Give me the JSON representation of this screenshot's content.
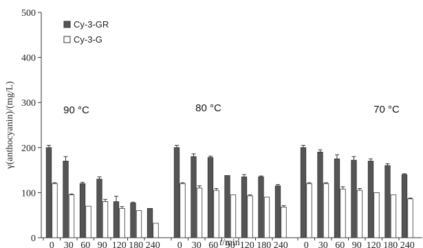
{
  "chart_data": {
    "type": "bar",
    "xlabel_italic": "t",
    "xlabel_rest": "/min",
    "ylabel": "γ(anthocyanin)/(mg/L)",
    "ylim": [
      0,
      500
    ],
    "yticks": [
      0,
      100,
      200,
      300,
      400,
      500
    ],
    "legend_placement": "top-left",
    "groups": [
      {
        "label": "90 °C",
        "categories": [
          "0",
          "30",
          "60",
          "90",
          "120",
          "180",
          "240"
        ],
        "series": [
          {
            "name": "Cy-3-GR",
            "values": [
              200,
              170,
              120,
              130,
              80,
              77,
              65
            ],
            "errors": [
              5,
              10,
              3,
              5,
              12,
              2,
              0
            ]
          },
          {
            "name": "Cy-3-G",
            "values": [
              120,
              95,
              70,
              80,
              65,
              60,
              32
            ],
            "errors": [
              2,
              2,
              0,
              5,
              4,
              0,
              0
            ]
          }
        ]
      },
      {
        "label": "80 °C",
        "categories": [
          "0",
          "30",
          "60",
          "90",
          "120",
          "180",
          "240"
        ],
        "series": [
          {
            "name": "Cy-3-GR",
            "values": [
              200,
              180,
              178,
              138,
              135,
              135,
              115
            ],
            "errors": [
              5,
              6,
              3,
              0,
              5,
              2,
              3
            ]
          },
          {
            "name": "Cy-3-G",
            "values": [
              120,
              110,
              105,
              95,
              93,
              90,
              68
            ],
            "errors": [
              2,
              5,
              4,
              0,
              2,
              0,
              3
            ]
          }
        ]
      },
      {
        "label": "70 °C",
        "categories": [
          "0",
          "30",
          "60",
          "90",
          "120",
          "180",
          "240"
        ],
        "series": [
          {
            "name": "Cy-3-GR",
            "values": [
              200,
              190,
              175,
              172,
              170,
              160,
              140
            ],
            "errors": [
              5,
              5,
              9,
              8,
              5,
              4,
              2
            ]
          },
          {
            "name": "Cy-3-G",
            "values": [
              120,
              120,
              108,
              105,
              100,
              95,
              86
            ],
            "errors": [
              2,
              2,
              5,
              4,
              0,
              0,
              2
            ]
          }
        ]
      }
    ],
    "colors": {
      "Cy-3-GR": "#555555",
      "Cy-3-G": "#ffffff",
      "stroke": "#333333"
    }
  }
}
